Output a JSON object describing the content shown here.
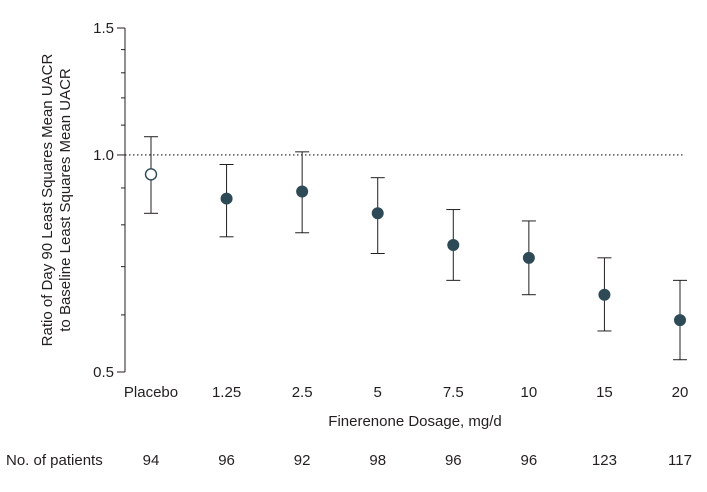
{
  "chart_data": {
    "type": "scatter",
    "subtype": "dot-with-error-bars",
    "y_scale": "log",
    "ylim": [
      0.5,
      1.5
    ],
    "yticks": [
      "0.5",
      "1.0",
      "1.5"
    ],
    "reference_line": {
      "y": 1.0,
      "style": "dotted"
    },
    "xlabel": "Finerenone Dosage, mg/d",
    "ylabel_lines": [
      "Ratio of Day 90 Least Squares Mean UACR",
      "to Baseline Least Squares Mean UACR"
    ],
    "categories": [
      "Placebo",
      "1.25",
      "2.5",
      "5",
      "7.5",
      "10",
      "15",
      "20"
    ],
    "values": [
      0.94,
      0.87,
      0.89,
      0.83,
      0.75,
      0.72,
      0.64,
      0.59
    ],
    "ci_lower": [
      0.83,
      0.77,
      0.78,
      0.73,
      0.67,
      0.64,
      0.57,
      0.52
    ],
    "ci_upper": [
      1.06,
      0.97,
      1.01,
      0.93,
      0.84,
      0.81,
      0.72,
      0.67
    ],
    "marker_fill": [
      "open",
      "filled",
      "filled",
      "filled",
      "filled",
      "filled",
      "filled",
      "filled"
    ],
    "grid": false
  },
  "patients": {
    "label": "No. of patients",
    "counts": [
      "94",
      "96",
      "92",
      "98",
      "96",
      "96",
      "123",
      "117"
    ]
  },
  "colors": {
    "marker": "#2e4a57",
    "axis": "#231f20",
    "error_bar": "#231f20",
    "reference": "#231f20"
  }
}
